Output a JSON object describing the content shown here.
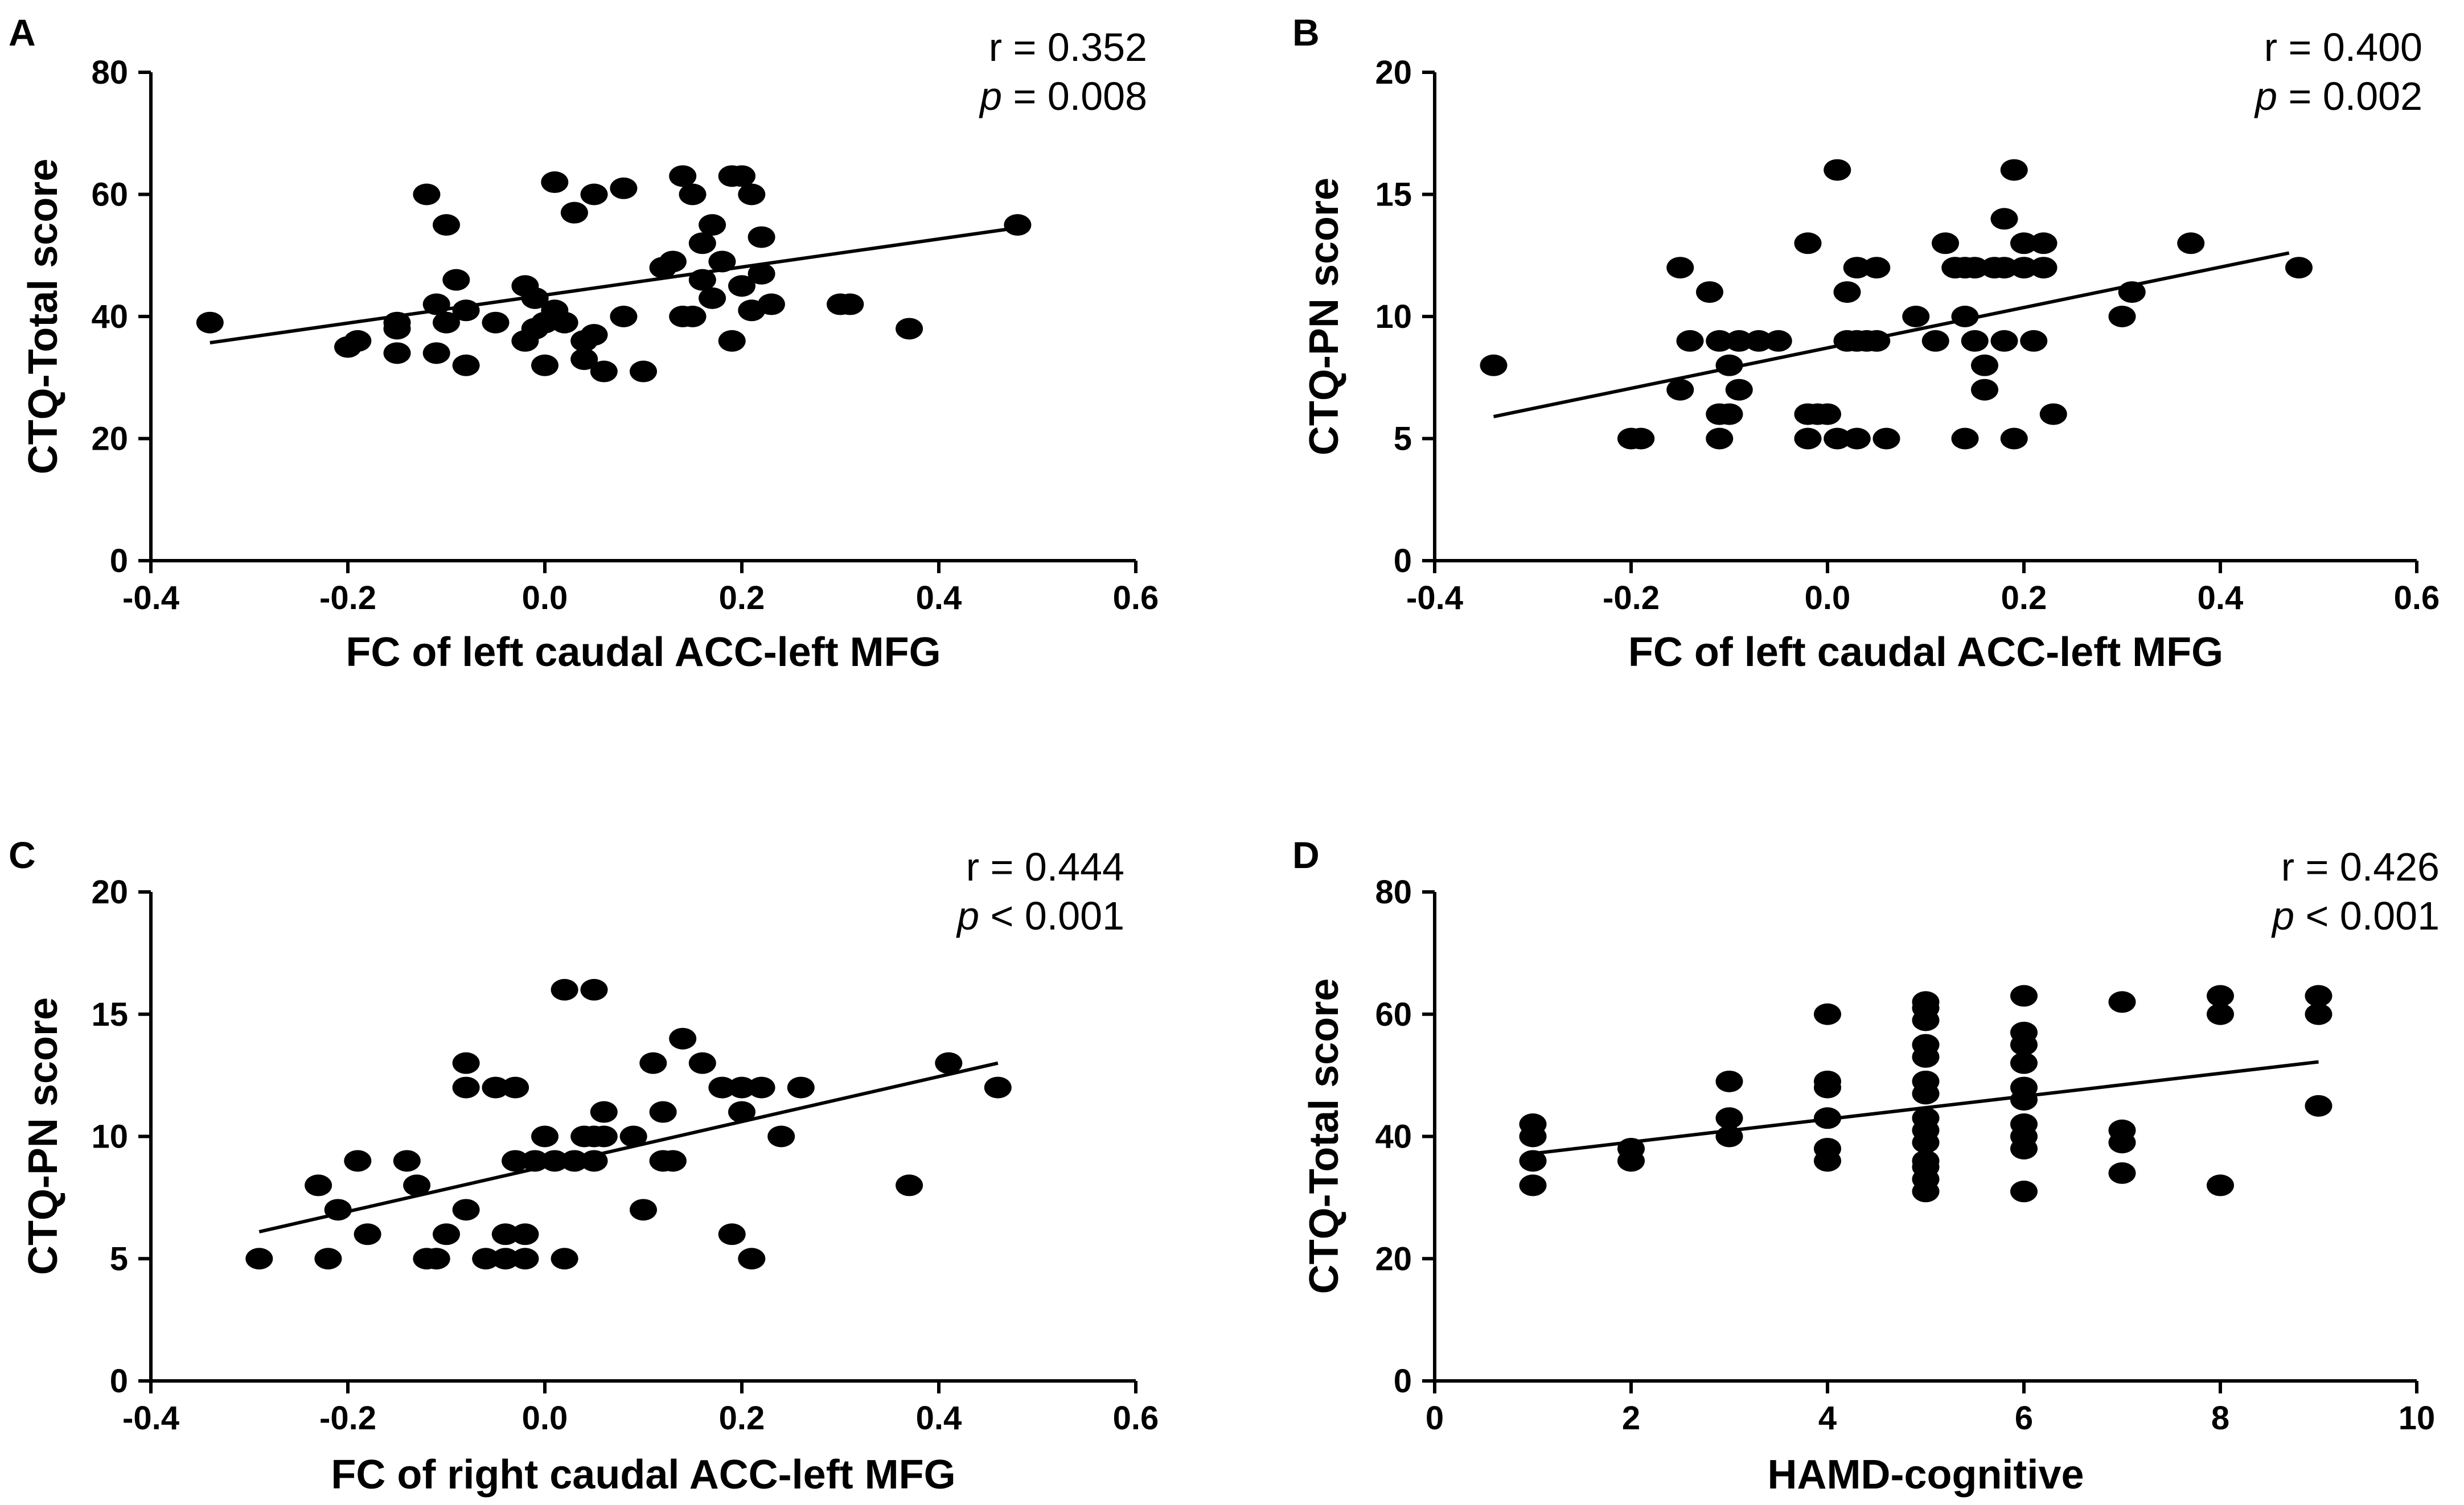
{
  "chart_data": [
    {
      "type": "scatter",
      "panel_label": "A",
      "xlabel": "FC of left caudal ACC-left MFG",
      "ylabel": "CTQ-Total score",
      "xlim": [
        -0.4,
        0.6
      ],
      "ylim": [
        0,
        80
      ],
      "xticks": [
        "-0.4",
        "-0.2",
        "0.0",
        "0.2",
        "0.4",
        "0.6"
      ],
      "yticks": [
        "0",
        "20",
        "40",
        "60",
        "80"
      ],
      "r_text": "r = 0.352",
      "p_symbol": "p",
      "p_rest": " = 0.008",
      "fit_line": [
        [
          -0.34,
          35.7
        ],
        [
          0.47,
          54.3
        ]
      ],
      "points": [
        [
          -0.34,
          39
        ],
        [
          -0.2,
          35
        ],
        [
          -0.19,
          36
        ],
        [
          -0.15,
          34
        ],
        [
          -0.15,
          38
        ],
        [
          -0.15,
          39
        ],
        [
          -0.12,
          60
        ],
        [
          -0.11,
          34
        ],
        [
          -0.11,
          42
        ],
        [
          -0.1,
          55
        ],
        [
          -0.1,
          39
        ],
        [
          -0.09,
          46
        ],
        [
          -0.08,
          32
        ],
        [
          -0.08,
          41
        ],
        [
          -0.05,
          39
        ],
        [
          -0.02,
          36
        ],
        [
          -0.02,
          45
        ],
        [
          -0.01,
          43
        ],
        [
          -0.01,
          38
        ],
        [
          0.0,
          39
        ],
        [
          0.0,
          32
        ],
        [
          0.01,
          41
        ],
        [
          0.01,
          62
        ],
        [
          0.02,
          39
        ],
        [
          0.03,
          57
        ],
        [
          0.04,
          36
        ],
        [
          0.04,
          33
        ],
        [
          0.05,
          60
        ],
        [
          0.05,
          37
        ],
        [
          0.06,
          31
        ],
        [
          0.08,
          61
        ],
        [
          0.08,
          40
        ],
        [
          0.1,
          31
        ],
        [
          0.12,
          48
        ],
        [
          0.13,
          49
        ],
        [
          0.14,
          63
        ],
        [
          0.14,
          40
        ],
        [
          0.15,
          60
        ],
        [
          0.15,
          40
        ],
        [
          0.16,
          46
        ],
        [
          0.16,
          52
        ],
        [
          0.17,
          55
        ],
        [
          0.17,
          43
        ],
        [
          0.18,
          49
        ],
        [
          0.19,
          63
        ],
        [
          0.19,
          36
        ],
        [
          0.2,
          63
        ],
        [
          0.2,
          45
        ],
        [
          0.21,
          60
        ],
        [
          0.21,
          41
        ],
        [
          0.22,
          53
        ],
        [
          0.22,
          47
        ],
        [
          0.23,
          42
        ],
        [
          0.3,
          42
        ],
        [
          0.31,
          42
        ],
        [
          0.37,
          38
        ],
        [
          0.48,
          55
        ]
      ]
    },
    {
      "type": "scatter",
      "panel_label": "B",
      "xlabel": "FC of left caudal ACC-left MFG",
      "ylabel": "CTQ-PN score",
      "xlim": [
        -0.4,
        0.6
      ],
      "ylim": [
        0,
        20
      ],
      "xticks": [
        "-0.4",
        "-0.2",
        "0.0",
        "0.2",
        "0.4",
        "0.6"
      ],
      "yticks": [
        "0",
        "5",
        "10",
        "15",
        "20"
      ],
      "r_text": "r = 0.400",
      "p_symbol": "p",
      "p_rest": " = 0.002",
      "fit_line": [
        [
          -0.34,
          5.9
        ],
        [
          0.47,
          12.6
        ]
      ],
      "points": [
        [
          -0.34,
          8
        ],
        [
          -0.2,
          5
        ],
        [
          -0.19,
          5
        ],
        [
          -0.15,
          12
        ],
        [
          -0.15,
          7
        ],
        [
          -0.14,
          9
        ],
        [
          -0.12,
          11
        ],
        [
          -0.11,
          9
        ],
        [
          -0.11,
          5
        ],
        [
          -0.11,
          6
        ],
        [
          -0.1,
          8
        ],
        [
          -0.1,
          6
        ],
        [
          -0.09,
          9
        ],
        [
          -0.09,
          7
        ],
        [
          -0.07,
          9
        ],
        [
          -0.05,
          9
        ],
        [
          -0.02,
          13
        ],
        [
          -0.02,
          6
        ],
        [
          -0.02,
          5
        ],
        [
          -0.01,
          6
        ],
        [
          0.0,
          6
        ],
        [
          0.01,
          5
        ],
        [
          0.01,
          16
        ],
        [
          0.02,
          9
        ],
        [
          0.02,
          11
        ],
        [
          0.03,
          12
        ],
        [
          0.03,
          9
        ],
        [
          0.03,
          5
        ],
        [
          0.04,
          9
        ],
        [
          0.05,
          12
        ],
        [
          0.05,
          9
        ],
        [
          0.06,
          5
        ],
        [
          0.09,
          10
        ],
        [
          0.11,
          9
        ],
        [
          0.12,
          13
        ],
        [
          0.13,
          12
        ],
        [
          0.14,
          10
        ],
        [
          0.14,
          5
        ],
        [
          0.14,
          12
        ],
        [
          0.15,
          9
        ],
        [
          0.15,
          12
        ],
        [
          0.16,
          7
        ],
        [
          0.16,
          8
        ],
        [
          0.17,
          12
        ],
        [
          0.18,
          14
        ],
        [
          0.18,
          9
        ],
        [
          0.18,
          12
        ],
        [
          0.19,
          16
        ],
        [
          0.19,
          5
        ],
        [
          0.2,
          12
        ],
        [
          0.2,
          13
        ],
        [
          0.21,
          9
        ],
        [
          0.22,
          12
        ],
        [
          0.22,
          13
        ],
        [
          0.23,
          6
        ],
        [
          0.3,
          10
        ],
        [
          0.31,
          11
        ],
        [
          0.37,
          13
        ],
        [
          0.48,
          12
        ]
      ]
    },
    {
      "type": "scatter",
      "panel_label": "C",
      "xlabel": "FC of right caudal ACC-left MFG",
      "ylabel": "CTQ-PN score",
      "xlim": [
        -0.4,
        0.6
      ],
      "ylim": [
        0,
        20
      ],
      "xticks": [
        "-0.4",
        "-0.2",
        "0.0",
        "0.2",
        "0.4",
        "0.6"
      ],
      "yticks": [
        "0",
        "5",
        "10",
        "15",
        "20"
      ],
      "r_text": "r = 0.444",
      "p_symbol": "p",
      "p_rest": " < 0.001",
      "fit_line": [
        [
          -0.29,
          6.1
        ],
        [
          0.46,
          13.0
        ]
      ],
      "points": [
        [
          -0.29,
          5
        ],
        [
          -0.23,
          8
        ],
        [
          -0.22,
          5
        ],
        [
          -0.21,
          7
        ],
        [
          -0.19,
          9
        ],
        [
          -0.18,
          6
        ],
        [
          -0.14,
          9
        ],
        [
          -0.13,
          8
        ],
        [
          -0.12,
          5
        ],
        [
          -0.11,
          5
        ],
        [
          -0.1,
          6
        ],
        [
          -0.08,
          13
        ],
        [
          -0.08,
          12
        ],
        [
          -0.08,
          7
        ],
        [
          -0.06,
          5
        ],
        [
          -0.05,
          12
        ],
        [
          -0.04,
          6
        ],
        [
          -0.04,
          5
        ],
        [
          -0.03,
          9
        ],
        [
          -0.03,
          12
        ],
        [
          -0.02,
          6
        ],
        [
          -0.02,
          5
        ],
        [
          -0.01,
          9
        ],
        [
          0.0,
          10
        ],
        [
          0.01,
          9
        ],
        [
          0.02,
          16
        ],
        [
          0.02,
          5
        ],
        [
          0.03,
          9
        ],
        [
          0.04,
          10
        ],
        [
          0.05,
          16
        ],
        [
          0.05,
          10
        ],
        [
          0.05,
          9
        ],
        [
          0.06,
          11
        ],
        [
          0.06,
          10
        ],
        [
          0.09,
          10
        ],
        [
          0.1,
          7
        ],
        [
          0.11,
          13
        ],
        [
          0.12,
          11
        ],
        [
          0.12,
          9
        ],
        [
          0.13,
          9
        ],
        [
          0.14,
          14
        ],
        [
          0.16,
          13
        ],
        [
          0.18,
          12
        ],
        [
          0.19,
          6
        ],
        [
          0.2,
          12
        ],
        [
          0.2,
          11
        ],
        [
          0.21,
          5
        ],
        [
          0.22,
          12
        ],
        [
          0.24,
          10
        ],
        [
          0.26,
          12
        ],
        [
          0.37,
          8
        ],
        [
          0.41,
          13
        ],
        [
          0.46,
          12
        ]
      ]
    },
    {
      "type": "scatter",
      "panel_label": "D",
      "xlabel": "HAMD-cognitive",
      "ylabel": "CTQ-Total score",
      "xlim": [
        0,
        10
      ],
      "ylim": [
        0,
        80
      ],
      "xticks": [
        "0",
        "2",
        "4",
        "6",
        "8",
        "10"
      ],
      "yticks": [
        "0",
        "20",
        "40",
        "60",
        "80"
      ],
      "r_text": "r = 0.426",
      "p_symbol": "p",
      "p_rest": " < 0.001",
      "fit_line": [
        [
          1,
          37.2
        ],
        [
          9,
          52.2
        ]
      ],
      "points": [
        [
          1,
          42
        ],
        [
          1,
          40
        ],
        [
          1,
          36
        ],
        [
          1,
          32
        ],
        [
          2,
          38
        ],
        [
          2,
          36
        ],
        [
          3,
          49
        ],
        [
          3,
          43
        ],
        [
          3,
          40
        ],
        [
          4,
          60
        ],
        [
          4,
          49
        ],
        [
          4,
          48
        ],
        [
          4,
          43
        ],
        [
          4,
          38
        ],
        [
          4,
          36
        ],
        [
          5,
          62
        ],
        [
          5,
          61
        ],
        [
          5,
          59
        ],
        [
          5,
          55
        ],
        [
          5,
          53
        ],
        [
          5,
          49
        ],
        [
          5,
          47
        ],
        [
          5,
          43
        ],
        [
          5,
          41
        ],
        [
          5,
          39
        ],
        [
          5,
          36
        ],
        [
          5,
          35
        ],
        [
          5,
          33
        ],
        [
          5,
          31
        ],
        [
          6,
          63
        ],
        [
          6,
          57
        ],
        [
          6,
          55
        ],
        [
          6,
          52
        ],
        [
          6,
          48
        ],
        [
          6,
          46
        ],
        [
          6,
          42
        ],
        [
          6,
          40
        ],
        [
          6,
          38
        ],
        [
          6,
          31
        ],
        [
          7,
          62
        ],
        [
          7,
          41
        ],
        [
          7,
          39
        ],
        [
          7,
          34
        ],
        [
          8,
          63
        ],
        [
          8,
          60
        ],
        [
          8,
          32
        ],
        [
          9,
          63
        ],
        [
          9,
          60
        ],
        [
          9,
          45
        ]
      ]
    }
  ]
}
